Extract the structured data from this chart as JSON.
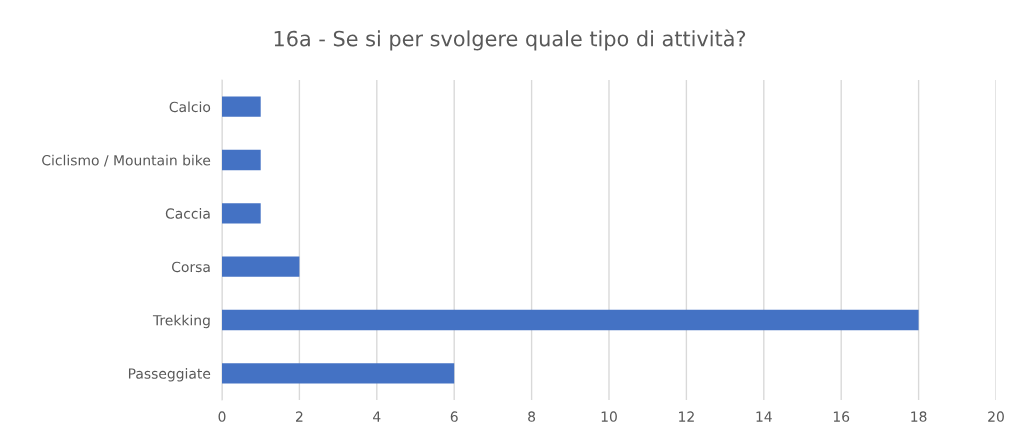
{
  "chart_data": {
    "type": "bar",
    "orientation": "horizontal",
    "title": "16a - Se si per svolgere quale tipo di attività?",
    "categories": [
      "Calcio",
      "Ciclismo / Mountain bike",
      "Caccia",
      "Corsa",
      "Trekking",
      "Passeggiate"
    ],
    "values": [
      1,
      1,
      1,
      2,
      18,
      6
    ],
    "color": "#4472c4",
    "xlim": [
      0,
      20
    ],
    "xticks": [
      0,
      2,
      4,
      6,
      8,
      10,
      12,
      14,
      16,
      18,
      20
    ],
    "grid": "x"
  }
}
